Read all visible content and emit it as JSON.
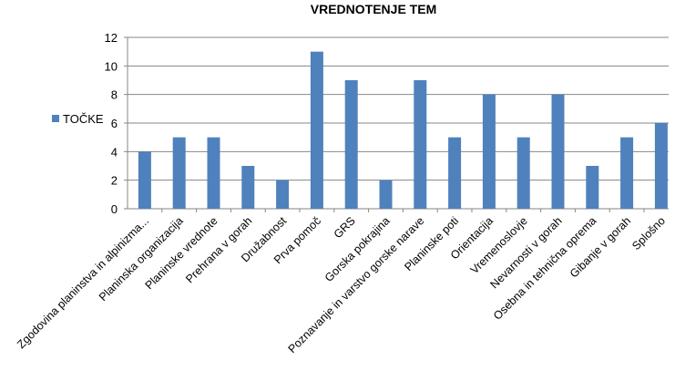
{
  "chart_data": {
    "type": "bar",
    "title": "VREDNOTENJE TEM",
    "xlabel": "",
    "ylabel": "",
    "categories": [
      "Zgodovina planinstva  in alpinizma...",
      "Planinska organizacija",
      "Planinske vrednote",
      "Prehrana v gorah",
      "Družabnost",
      "Prva pomoč",
      "GRS",
      "Gorska pokrajina",
      "Poznavanje in varstvo gorske narave",
      "Planinske poti",
      "Orientacija",
      "Vremenoslovje",
      "Nevarnosti v gorah",
      "Osebna in tehnična oprema",
      "Gibanje v gorah",
      "Splošno"
    ],
    "series": [
      {
        "name": "TOČKE",
        "values": [
          4,
          5,
          5,
          3,
          2,
          11,
          9,
          2,
          9,
          5,
          8,
          5,
          8,
          3,
          5,
          6
        ]
      }
    ],
    "ylim": [
      0,
      12
    ],
    "yticks": [
      0,
      2,
      4,
      6,
      8,
      10,
      12
    ],
    "grid": true,
    "legend_position": "left",
    "colors": {
      "bar": "#4f81bd",
      "grid": "#868686"
    }
  }
}
